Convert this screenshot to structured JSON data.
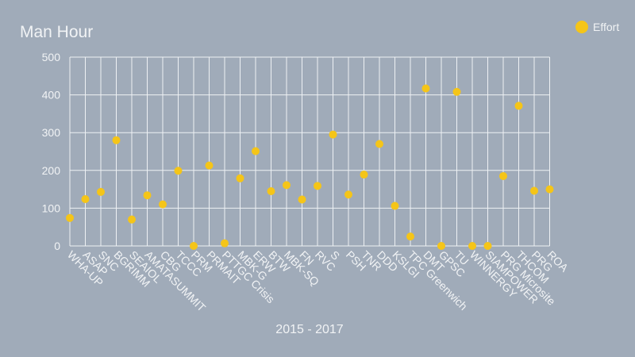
{
  "chart_data": {
    "type": "scatter",
    "title": "Man Hour",
    "xlabel": "2015 - 2017",
    "ylabel": "",
    "ylim": [
      0,
      500
    ],
    "yticks": [
      0,
      100,
      200,
      300,
      400,
      500
    ],
    "grid": "on",
    "legend_position": "top-right",
    "categories": [
      "WHA-UP",
      "ASAP",
      "SNC",
      "BGRIMM",
      "SEAIOL",
      "AMATASUMMIT",
      "CBG",
      "TCCC",
      "PRM",
      "PRMAIT",
      "PTTGC Crisis",
      "MBK-G",
      "ERW",
      "BTW",
      "MBK-SQ",
      "FN",
      "RVC",
      "S",
      "PSH",
      "TNR",
      "DDD",
      "KSLGI",
      "TPC Greenwich",
      "DMT",
      "GPSC",
      "TU",
      "WINNERGY",
      "SIAMPOWER",
      "PRG Microsite",
      "THCOM",
      "PRG",
      "ROA"
    ],
    "series": [
      {
        "name": "Effort",
        "color": "#f5c518",
        "values": [
          74,
          124,
          143,
          280,
          70,
          134,
          110,
          199,
          0,
          213,
          7,
          179,
          251,
          145,
          161,
          123,
          159,
          295,
          136,
          189,
          270,
          106,
          25,
          417,
          0,
          408,
          0,
          0,
          185,
          371,
          146,
          150
        ]
      }
    ]
  }
}
